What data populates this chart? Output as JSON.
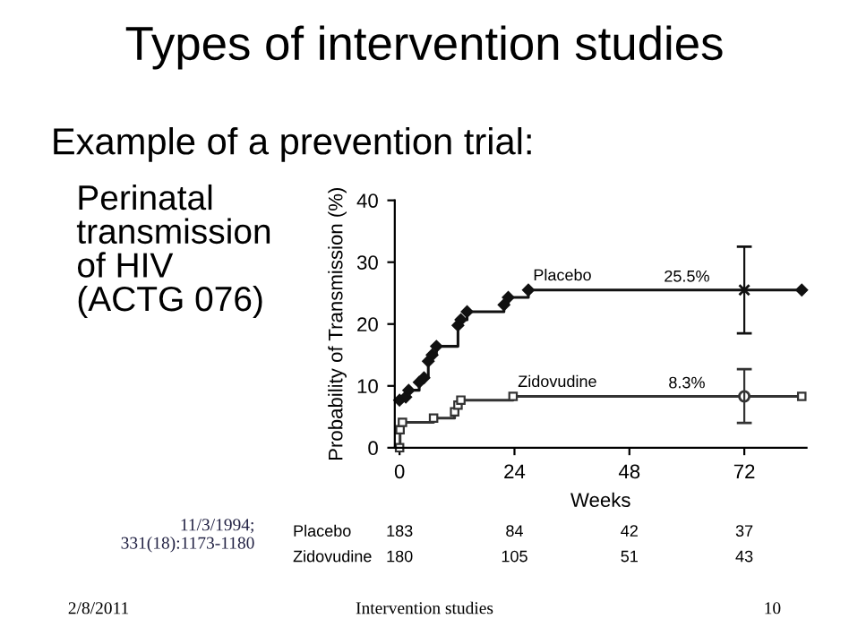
{
  "chart_data": {
    "type": "step",
    "title": "Types of intervention studies",
    "subtitle": "Example of a prevention trial:",
    "xlabel": "Weeks",
    "ylabel": "Probability of Transmission (%)",
    "series": [
      {
        "name": "Placebo",
        "color": "#111111",
        "marker": "diamond",
        "x": [
          0,
          1.3,
          1.9,
          4.1,
          5.1,
          6,
          6.8,
          7.7,
          12.2,
          12.8,
          14.1,
          21.8,
          22.7,
          26.9,
          84
        ],
        "values": [
          7.7,
          8.2,
          9.3,
          10.6,
          11.3,
          14,
          15,
          16.4,
          19.8,
          20.7,
          22,
          23.1,
          24.3,
          25.5,
          25.5
        ]
      },
      {
        "name": "Zidovudine",
        "color": "#333333",
        "marker": "square",
        "x": [
          0,
          0.1,
          0.6,
          7.1,
          11.5,
          12.2,
          12.8,
          23.7,
          84
        ],
        "values": [
          0,
          2.9,
          4.1,
          4.8,
          5.8,
          6.9,
          7.7,
          8.3,
          8.3
        ]
      },
      {
        "type": "scatter",
        "color": "#111111",
        "marker": "cross",
        "x": [
          72
        ],
        "values": [
          25.5
        ],
        "errors": [
          [
            18.5,
            32.5
          ]
        ]
      },
      {
        "type": "scatter",
        "color": "#333333",
        "marker": "circle",
        "x": [
          72
        ],
        "values": [
          8.3
        ],
        "errors": [
          [
            4.0,
            12.7
          ]
        ]
      }
    ],
    "annotations": [
      {
        "text": "25.5%",
        "x": 60,
        "y": 25.5
      },
      {
        "text": "8.3%",
        "x": 60,
        "y": 8.3
      },
      "Perinatal\ntransmission\nof HIV\n(ACTG 076)",
      "11/3/1994;\n331(18):1173-1180",
      "Placebo",
      "183",
      "84",
      "42",
      "37",
      "Zidovudine",
      "180",
      "105",
      "51",
      "43",
      "2/8/2011",
      "Intervention studies",
      "10"
    ],
    "xlim": [
      -1,
      85
    ],
    "ylim": [
      0,
      40
    ],
    "xticks": [
      0,
      24,
      48,
      72
    ],
    "yticks": [
      0,
      10,
      20,
      30,
      40
    ],
    "grid": false,
    "legend": false
  }
}
